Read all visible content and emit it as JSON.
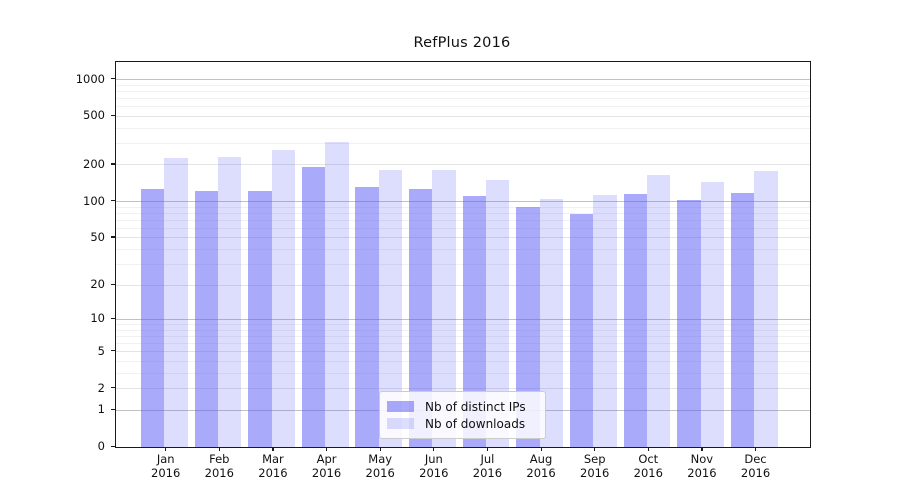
{
  "title": "RefPlus 2016",
  "colors": {
    "bar_base": "#5555f5",
    "ips_alpha": 0.5,
    "downloads_alpha": 0.2,
    "grid_pow10": "#c2c2c2",
    "grid_major": "#e4e4e4",
    "grid_minor": "#f1f1f1",
    "axis": "#1a1a1a"
  },
  "legend": {
    "items": [
      {
        "label": "Nb of distinct IPs",
        "series": "ips"
      },
      {
        "label": "Nb of downloads",
        "series": "downloads"
      }
    ]
  },
  "chart_data": {
    "type": "bar",
    "title": "RefPlus 2016",
    "yscale": "log1p",
    "grid": true,
    "legend_position": "inside lower-center",
    "categories": [
      "Jan",
      "Feb",
      "Mar",
      "Apr",
      "May",
      "Jun",
      "Jul",
      "Aug",
      "Sep",
      "Oct",
      "Nov",
      "Dec"
    ],
    "year_label": "2016",
    "series": [
      {
        "name": "Nb of distinct IPs",
        "values": [
          128,
          121,
          123,
          193,
          131,
          127,
          111,
          90,
          79,
          116,
          102,
          118
        ]
      },
      {
        "name": "Nb of downloads",
        "values": [
          230,
          234,
          266,
          310,
          180,
          183,
          150,
          105,
          113,
          165,
          144,
          179
        ]
      }
    ],
    "yticks": [
      0,
      1,
      2,
      5,
      10,
      20,
      50,
      100,
      200,
      500,
      1000
    ],
    "ylim": [
      0,
      1390
    ]
  }
}
